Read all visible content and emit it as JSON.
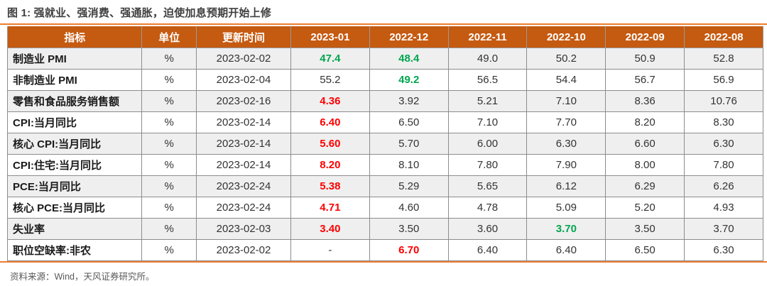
{
  "figure_title": "图 1: 强就业、强消费、强通胀，迫使加息预期开始上修",
  "source_note": "资料来源：Wind，天风证券研究所。",
  "colors": {
    "header_bg": "#C55A11",
    "accent_rule": "#ED7D31",
    "title_text": "#3F3F3F",
    "positive_green": "#00A650",
    "highlight_red": "#FE0000",
    "row_alt_bg": "#EFEFEF",
    "grid_line": "#8C8C8C",
    "source_text": "#595959"
  },
  "chart_data": {
    "type": "table",
    "title": "图 1: 强就业、强消费、强通胀，迫使加息预期开始上修",
    "columns": [
      "指标",
      "单位",
      "更新时间",
      "2023-01",
      "2022-12",
      "2022-11",
      "2022-10",
      "2022-09",
      "2022-08"
    ],
    "rows": [
      {
        "cells": [
          "制造业 PMI",
          "%",
          "2023-02-02",
          "47.4",
          "48.4",
          "49.0",
          "50.2",
          "50.9",
          "52.8"
        ],
        "cell_colors": [
          null,
          null,
          null,
          "green",
          "green",
          null,
          null,
          null,
          null
        ]
      },
      {
        "cells": [
          "非制造业 PMI",
          "%",
          "2023-02-04",
          "55.2",
          "49.2",
          "56.5",
          "54.4",
          "56.7",
          "56.9"
        ],
        "cell_colors": [
          null,
          null,
          null,
          null,
          "green",
          null,
          null,
          null,
          null
        ]
      },
      {
        "cells": [
          "零售和食品服务销售额",
          "%",
          "2023-02-16",
          "4.36",
          "3.92",
          "5.21",
          "7.10",
          "8.36",
          "10.76"
        ],
        "cell_colors": [
          null,
          null,
          null,
          "red",
          null,
          null,
          null,
          null,
          null
        ]
      },
      {
        "cells": [
          "CPI:当月同比",
          "%",
          "2023-02-14",
          "6.40",
          "6.50",
          "7.10",
          "7.70",
          "8.20",
          "8.30"
        ],
        "cell_colors": [
          null,
          null,
          null,
          "red",
          null,
          null,
          null,
          null,
          null
        ]
      },
      {
        "cells": [
          "核心 CPI:当月同比",
          "%",
          "2023-02-14",
          "5.60",
          "5.70",
          "6.00",
          "6.30",
          "6.60",
          "6.30"
        ],
        "cell_colors": [
          null,
          null,
          null,
          "red",
          null,
          null,
          null,
          null,
          null
        ]
      },
      {
        "cells": [
          "CPI:住宅:当月同比",
          "%",
          "2023-02-14",
          "8.20",
          "8.10",
          "7.80",
          "7.90",
          "8.00",
          "7.80"
        ],
        "cell_colors": [
          null,
          null,
          null,
          "red",
          null,
          null,
          null,
          null,
          null
        ]
      },
      {
        "cells": [
          "PCE:当月同比",
          "%",
          "2023-02-24",
          "5.38",
          "5.29",
          "5.65",
          "6.12",
          "6.29",
          "6.26"
        ],
        "cell_colors": [
          null,
          null,
          null,
          "red",
          null,
          null,
          null,
          null,
          null
        ]
      },
      {
        "cells": [
          "核心 PCE:当月同比",
          "%",
          "2023-02-24",
          "4.71",
          "4.60",
          "4.78",
          "5.09",
          "5.20",
          "4.93"
        ],
        "cell_colors": [
          null,
          null,
          null,
          "red",
          null,
          null,
          null,
          null,
          null
        ]
      },
      {
        "cells": [
          "失业率",
          "%",
          "2023-02-03",
          "3.40",
          "3.50",
          "3.60",
          "3.70",
          "3.50",
          "3.70"
        ],
        "cell_colors": [
          null,
          null,
          null,
          "red",
          null,
          null,
          "green",
          null,
          null
        ]
      },
      {
        "cells": [
          "职位空缺率:非农",
          "%",
          "2023-02-02",
          "-",
          "6.70",
          "6.40",
          "6.40",
          "6.50",
          "6.30"
        ],
        "cell_colors": [
          null,
          null,
          null,
          null,
          "red",
          null,
          null,
          null,
          null
        ]
      }
    ],
    "layout": {
      "alternating_rows": true,
      "header_style": "orange-bold-white",
      "notes": "green = improving / lower inflation print, red = hot print supporting rate-hike repricing"
    }
  }
}
